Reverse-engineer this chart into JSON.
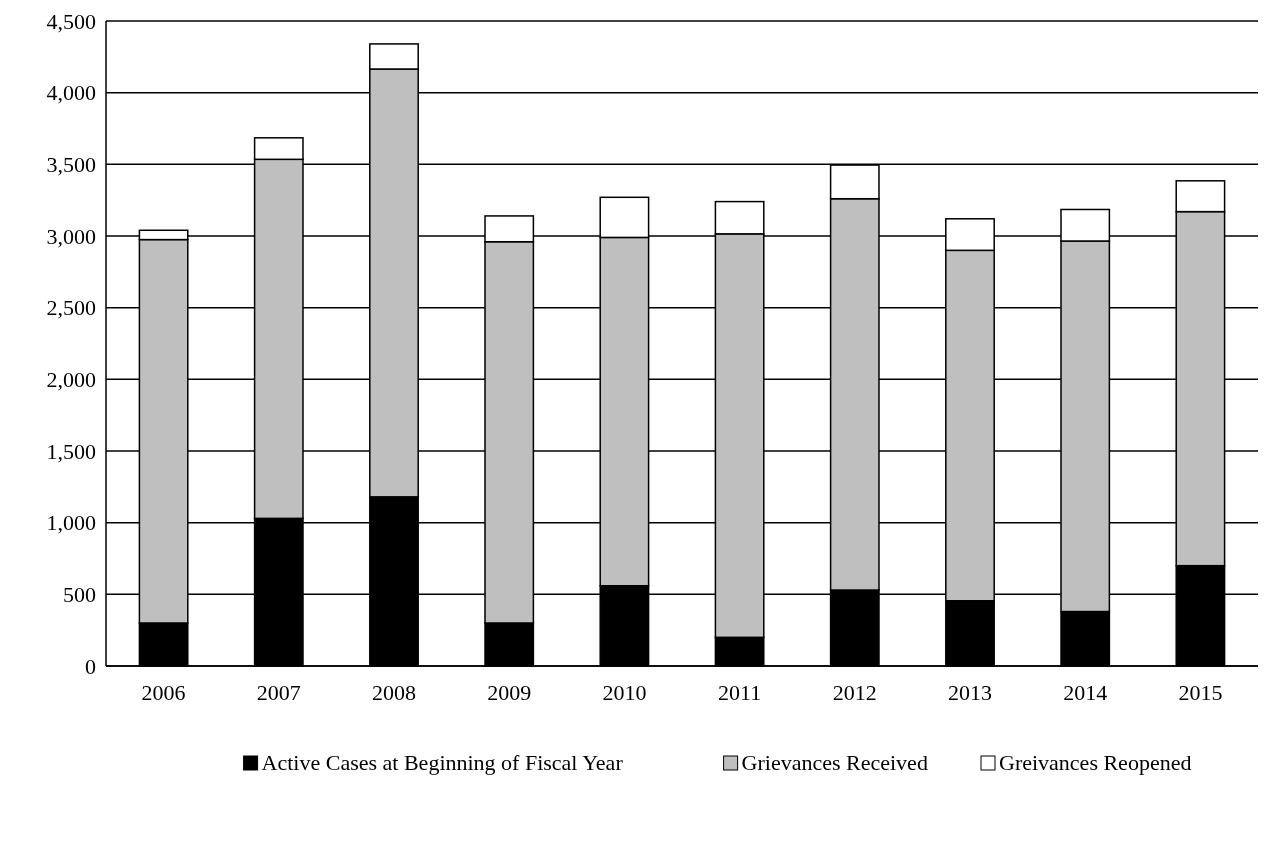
{
  "chart_data": {
    "type": "bar",
    "stacked": true,
    "categories": [
      "2006",
      "2007",
      "2008",
      "2009",
      "2010",
      "2011",
      "2012",
      "2013",
      "2014",
      "2015"
    ],
    "series": [
      {
        "name": "Active Cases at Beginning of Fiscal Year",
        "color": "#000000",
        "values": [
          300,
          1030,
          1180,
          300,
          560,
          200,
          530,
          455,
          380,
          700
        ]
      },
      {
        "name": "Grievances Received",
        "color": "#bfbfbf",
        "values": [
          2675,
          2505,
          2985,
          2660,
          2430,
          2815,
          2730,
          2445,
          2585,
          2470
        ]
      },
      {
        "name": "Greivances Reopened",
        "color": "#ffffff",
        "values": [
          65,
          150,
          175,
          180,
          280,
          225,
          235,
          220,
          220,
          215
        ]
      }
    ],
    "ylim": [
      0,
      4500
    ],
    "yticks": [
      {
        "value": 0,
        "label": "0"
      },
      {
        "value": 500,
        "label": "500"
      },
      {
        "value": 1000,
        "label": "1,000"
      },
      {
        "value": 1500,
        "label": "1,500"
      },
      {
        "value": 2000,
        "label": "2,000"
      },
      {
        "value": 2500,
        "label": "2,500"
      },
      {
        "value": 3000,
        "label": "3,000"
      },
      {
        "value": 3500,
        "label": "3,500"
      },
      {
        "value": 4000,
        "label": "4,000"
      },
      {
        "value": 4500,
        "label": "4,500"
      }
    ],
    "grid": "y",
    "legend": "bottom"
  }
}
